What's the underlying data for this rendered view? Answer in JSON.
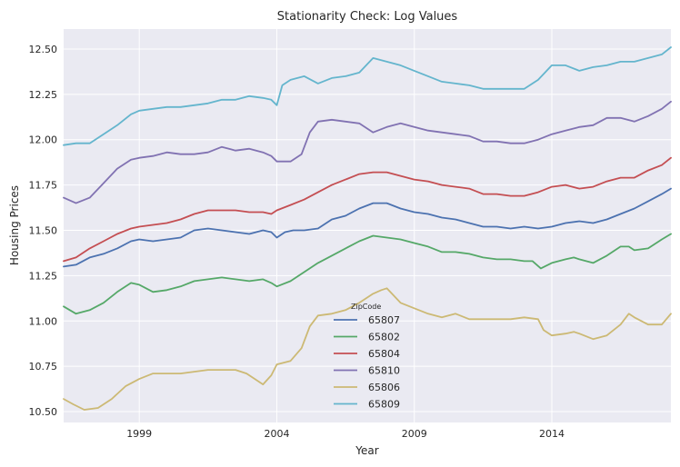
{
  "chart_data": {
    "type": "line",
    "title": "Stationarity Check: Log Values",
    "xlabel": "Year",
    "ylabel": "Housing Prices",
    "xlim": [
      1996.25,
      2018.33
    ],
    "ylim": [
      10.44,
      12.61
    ],
    "x_ticks": [
      1999,
      2004,
      2009,
      2014
    ],
    "y_ticks": [
      10.5,
      10.75,
      11.0,
      11.25,
      11.5,
      11.75,
      12.0,
      12.25,
      12.5
    ],
    "y_tick_labels": [
      "10.50",
      "10.75",
      "11.00",
      "11.25",
      "11.50",
      "11.75",
      "12.00",
      "12.25",
      "12.50"
    ],
    "grid": true,
    "legend": {
      "title": "ZipCode",
      "placement": "lower-center"
    },
    "series": [
      {
        "name": "65807",
        "color": "#4c72b0",
        "points": [
          [
            1996.25,
            11.3
          ],
          [
            1996.7,
            11.31
          ],
          [
            1997.2,
            11.35
          ],
          [
            1997.7,
            11.37
          ],
          [
            1998.2,
            11.4
          ],
          [
            1998.7,
            11.44
          ],
          [
            1999.0,
            11.45
          ],
          [
            1999.5,
            11.44
          ],
          [
            2000.0,
            11.45
          ],
          [
            2000.5,
            11.46
          ],
          [
            2001.0,
            11.5
          ],
          [
            2001.5,
            11.51
          ],
          [
            2002.0,
            11.5
          ],
          [
            2002.5,
            11.49
          ],
          [
            2003.0,
            11.48
          ],
          [
            2003.5,
            11.5
          ],
          [
            2003.8,
            11.49
          ],
          [
            2004.0,
            11.46
          ],
          [
            2004.3,
            11.49
          ],
          [
            2004.6,
            11.5
          ],
          [
            2005.0,
            11.5
          ],
          [
            2005.5,
            11.51
          ],
          [
            2006.0,
            11.56
          ],
          [
            2006.5,
            11.58
          ],
          [
            2007.0,
            11.62
          ],
          [
            2007.5,
            11.65
          ],
          [
            2008.0,
            11.65
          ],
          [
            2008.5,
            11.62
          ],
          [
            2009.0,
            11.6
          ],
          [
            2009.5,
            11.59
          ],
          [
            2010.0,
            11.57
          ],
          [
            2010.5,
            11.56
          ],
          [
            2011.0,
            11.54
          ],
          [
            2011.5,
            11.52
          ],
          [
            2012.0,
            11.52
          ],
          [
            2012.5,
            11.51
          ],
          [
            2013.0,
            11.52
          ],
          [
            2013.5,
            11.51
          ],
          [
            2014.0,
            11.52
          ],
          [
            2014.5,
            11.54
          ],
          [
            2015.0,
            11.55
          ],
          [
            2015.5,
            11.54
          ],
          [
            2016.0,
            11.56
          ],
          [
            2016.5,
            11.59
          ],
          [
            2017.0,
            11.62
          ],
          [
            2017.5,
            11.66
          ],
          [
            2018.0,
            11.7
          ],
          [
            2018.33,
            11.73
          ]
        ]
      },
      {
        "name": "65802",
        "color": "#55a868",
        "points": [
          [
            1996.25,
            11.08
          ],
          [
            1996.7,
            11.04
          ],
          [
            1997.2,
            11.06
          ],
          [
            1997.7,
            11.1
          ],
          [
            1998.2,
            11.16
          ],
          [
            1998.7,
            11.21
          ],
          [
            1999.0,
            11.2
          ],
          [
            1999.5,
            11.16
          ],
          [
            2000.0,
            11.17
          ],
          [
            2000.5,
            11.19
          ],
          [
            2001.0,
            11.22
          ],
          [
            2001.5,
            11.23
          ],
          [
            2002.0,
            11.24
          ],
          [
            2002.5,
            11.23
          ],
          [
            2003.0,
            11.22
          ],
          [
            2003.5,
            11.23
          ],
          [
            2003.8,
            11.21
          ],
          [
            2004.0,
            11.19
          ],
          [
            2004.5,
            11.22
          ],
          [
            2005.0,
            11.27
          ],
          [
            2005.5,
            11.32
          ],
          [
            2006.0,
            11.36
          ],
          [
            2006.5,
            11.4
          ],
          [
            2007.0,
            11.44
          ],
          [
            2007.5,
            11.47
          ],
          [
            2008.0,
            11.46
          ],
          [
            2008.5,
            11.45
          ],
          [
            2009.0,
            11.43
          ],
          [
            2009.5,
            11.41
          ],
          [
            2010.0,
            11.38
          ],
          [
            2010.5,
            11.38
          ],
          [
            2011.0,
            11.37
          ],
          [
            2011.5,
            11.35
          ],
          [
            2012.0,
            11.34
          ],
          [
            2012.5,
            11.34
          ],
          [
            2013.0,
            11.33
          ],
          [
            2013.3,
            11.33
          ],
          [
            2013.6,
            11.29
          ],
          [
            2014.0,
            11.32
          ],
          [
            2014.5,
            11.34
          ],
          [
            2014.8,
            11.35
          ],
          [
            2015.0,
            11.34
          ],
          [
            2015.5,
            11.32
          ],
          [
            2016.0,
            11.36
          ],
          [
            2016.5,
            11.41
          ],
          [
            2016.8,
            11.41
          ],
          [
            2017.0,
            11.39
          ],
          [
            2017.5,
            11.4
          ],
          [
            2018.0,
            11.45
          ],
          [
            2018.33,
            11.48
          ]
        ]
      },
      {
        "name": "65804",
        "color": "#c44e52",
        "points": [
          [
            1996.25,
            11.33
          ],
          [
            1996.7,
            11.35
          ],
          [
            1997.2,
            11.4
          ],
          [
            1997.7,
            11.44
          ],
          [
            1998.2,
            11.48
          ],
          [
            1998.7,
            11.51
          ],
          [
            1999.0,
            11.52
          ],
          [
            1999.5,
            11.53
          ],
          [
            2000.0,
            11.54
          ],
          [
            2000.5,
            11.56
          ],
          [
            2001.0,
            11.59
          ],
          [
            2001.5,
            11.61
          ],
          [
            2002.0,
            11.61
          ],
          [
            2002.5,
            11.61
          ],
          [
            2003.0,
            11.6
          ],
          [
            2003.5,
            11.6
          ],
          [
            2003.8,
            11.59
          ],
          [
            2004.0,
            11.61
          ],
          [
            2004.5,
            11.64
          ],
          [
            2005.0,
            11.67
          ],
          [
            2005.5,
            11.71
          ],
          [
            2006.0,
            11.75
          ],
          [
            2006.5,
            11.78
          ],
          [
            2007.0,
            11.81
          ],
          [
            2007.5,
            11.82
          ],
          [
            2008.0,
            11.82
          ],
          [
            2008.5,
            11.8
          ],
          [
            2009.0,
            11.78
          ],
          [
            2009.5,
            11.77
          ],
          [
            2010.0,
            11.75
          ],
          [
            2010.5,
            11.74
          ],
          [
            2011.0,
            11.73
          ],
          [
            2011.5,
            11.7
          ],
          [
            2012.0,
            11.7
          ],
          [
            2012.5,
            11.69
          ],
          [
            2013.0,
            11.69
          ],
          [
            2013.5,
            11.71
          ],
          [
            2014.0,
            11.74
          ],
          [
            2014.5,
            11.75
          ],
          [
            2015.0,
            11.73
          ],
          [
            2015.5,
            11.74
          ],
          [
            2016.0,
            11.77
          ],
          [
            2016.5,
            11.79
          ],
          [
            2017.0,
            11.79
          ],
          [
            2017.5,
            11.83
          ],
          [
            2018.0,
            11.86
          ],
          [
            2018.33,
            11.9
          ]
        ]
      },
      {
        "name": "65810",
        "color": "#8172b2",
        "points": [
          [
            1996.25,
            11.68
          ],
          [
            1996.7,
            11.65
          ],
          [
            1997.2,
            11.68
          ],
          [
            1997.7,
            11.76
          ],
          [
            1998.2,
            11.84
          ],
          [
            1998.7,
            11.89
          ],
          [
            1999.0,
            11.9
          ],
          [
            1999.5,
            11.91
          ],
          [
            2000.0,
            11.93
          ],
          [
            2000.5,
            11.92
          ],
          [
            2001.0,
            11.92
          ],
          [
            2001.5,
            11.93
          ],
          [
            2002.0,
            11.96
          ],
          [
            2002.5,
            11.94
          ],
          [
            2003.0,
            11.95
          ],
          [
            2003.5,
            11.93
          ],
          [
            2003.8,
            11.91
          ],
          [
            2004.0,
            11.88
          ],
          [
            2004.5,
            11.88
          ],
          [
            2004.9,
            11.92
          ],
          [
            2005.2,
            12.04
          ],
          [
            2005.5,
            12.1
          ],
          [
            2006.0,
            12.11
          ],
          [
            2006.5,
            12.1
          ],
          [
            2007.0,
            12.09
          ],
          [
            2007.5,
            12.04
          ],
          [
            2008.0,
            12.07
          ],
          [
            2008.5,
            12.09
          ],
          [
            2009.0,
            12.07
          ],
          [
            2009.5,
            12.05
          ],
          [
            2010.0,
            12.04
          ],
          [
            2010.5,
            12.03
          ],
          [
            2011.0,
            12.02
          ],
          [
            2011.5,
            11.99
          ],
          [
            2012.0,
            11.99
          ],
          [
            2012.5,
            11.98
          ],
          [
            2013.0,
            11.98
          ],
          [
            2013.5,
            12.0
          ],
          [
            2014.0,
            12.03
          ],
          [
            2014.5,
            12.05
          ],
          [
            2015.0,
            12.07
          ],
          [
            2015.5,
            12.08
          ],
          [
            2016.0,
            12.12
          ],
          [
            2016.5,
            12.12
          ],
          [
            2017.0,
            12.1
          ],
          [
            2017.5,
            12.13
          ],
          [
            2018.0,
            12.17
          ],
          [
            2018.33,
            12.21
          ]
        ]
      },
      {
        "name": "65806",
        "color": "#ccb974",
        "points": [
          [
            1996.25,
            10.57
          ],
          [
            1996.6,
            10.54
          ],
          [
            1997.0,
            10.51
          ],
          [
            1997.5,
            10.52
          ],
          [
            1998.0,
            10.57
          ],
          [
            1998.5,
            10.64
          ],
          [
            1999.0,
            10.68
          ],
          [
            1999.5,
            10.71
          ],
          [
            2000.0,
            10.71
          ],
          [
            2000.5,
            10.71
          ],
          [
            2001.0,
            10.72
          ],
          [
            2001.5,
            10.73
          ],
          [
            2002.0,
            10.73
          ],
          [
            2002.5,
            10.73
          ],
          [
            2002.9,
            10.71
          ],
          [
            2003.2,
            10.68
          ],
          [
            2003.5,
            10.65
          ],
          [
            2003.8,
            10.7
          ],
          [
            2004.0,
            10.76
          ],
          [
            2004.5,
            10.78
          ],
          [
            2004.9,
            10.85
          ],
          [
            2005.2,
            10.97
          ],
          [
            2005.5,
            11.03
          ],
          [
            2006.0,
            11.04
          ],
          [
            2006.5,
            11.06
          ],
          [
            2007.0,
            11.1
          ],
          [
            2007.5,
            11.15
          ],
          [
            2007.8,
            11.17
          ],
          [
            2008.0,
            11.18
          ],
          [
            2008.5,
            11.1
          ],
          [
            2009.0,
            11.07
          ],
          [
            2009.5,
            11.04
          ],
          [
            2010.0,
            11.02
          ],
          [
            2010.5,
            11.04
          ],
          [
            2011.0,
            11.01
          ],
          [
            2011.5,
            11.01
          ],
          [
            2012.0,
            11.01
          ],
          [
            2012.5,
            11.01
          ],
          [
            2013.0,
            11.02
          ],
          [
            2013.5,
            11.01
          ],
          [
            2013.7,
            10.95
          ],
          [
            2014.0,
            10.92
          ],
          [
            2014.5,
            10.93
          ],
          [
            2014.8,
            10.94
          ],
          [
            2015.0,
            10.93
          ],
          [
            2015.5,
            10.9
          ],
          [
            2016.0,
            10.92
          ],
          [
            2016.5,
            10.98
          ],
          [
            2016.8,
            11.04
          ],
          [
            2017.0,
            11.02
          ],
          [
            2017.5,
            10.98
          ],
          [
            2018.0,
            10.98
          ],
          [
            2018.33,
            11.04
          ]
        ]
      },
      {
        "name": "65809",
        "color": "#64b5cd",
        "points": [
          [
            1996.25,
            11.97
          ],
          [
            1996.7,
            11.98
          ],
          [
            1997.2,
            11.98
          ],
          [
            1997.7,
            12.03
          ],
          [
            1998.2,
            12.08
          ],
          [
            1998.7,
            12.14
          ],
          [
            1999.0,
            12.16
          ],
          [
            1999.5,
            12.17
          ],
          [
            2000.0,
            12.18
          ],
          [
            2000.5,
            12.18
          ],
          [
            2001.0,
            12.19
          ],
          [
            2001.5,
            12.2
          ],
          [
            2002.0,
            12.22
          ],
          [
            2002.5,
            12.22
          ],
          [
            2003.0,
            12.24
          ],
          [
            2003.5,
            12.23
          ],
          [
            2003.8,
            12.22
          ],
          [
            2004.0,
            12.19
          ],
          [
            2004.2,
            12.3
          ],
          [
            2004.5,
            12.33
          ],
          [
            2005.0,
            12.35
          ],
          [
            2005.5,
            12.31
          ],
          [
            2006.0,
            12.34
          ],
          [
            2006.5,
            12.35
          ],
          [
            2007.0,
            12.37
          ],
          [
            2007.5,
            12.45
          ],
          [
            2008.0,
            12.43
          ],
          [
            2008.5,
            12.41
          ],
          [
            2009.0,
            12.38
          ],
          [
            2009.5,
            12.35
          ],
          [
            2010.0,
            12.32
          ],
          [
            2010.5,
            12.31
          ],
          [
            2011.0,
            12.3
          ],
          [
            2011.5,
            12.28
          ],
          [
            2012.0,
            12.28
          ],
          [
            2012.5,
            12.28
          ],
          [
            2013.0,
            12.28
          ],
          [
            2013.5,
            12.33
          ],
          [
            2014.0,
            12.41
          ],
          [
            2014.5,
            12.41
          ],
          [
            2015.0,
            12.38
          ],
          [
            2015.5,
            12.4
          ],
          [
            2016.0,
            12.41
          ],
          [
            2016.5,
            12.43
          ],
          [
            2017.0,
            12.43
          ],
          [
            2017.5,
            12.45
          ],
          [
            2018.0,
            12.47
          ],
          [
            2018.33,
            12.51
          ]
        ]
      }
    ]
  }
}
